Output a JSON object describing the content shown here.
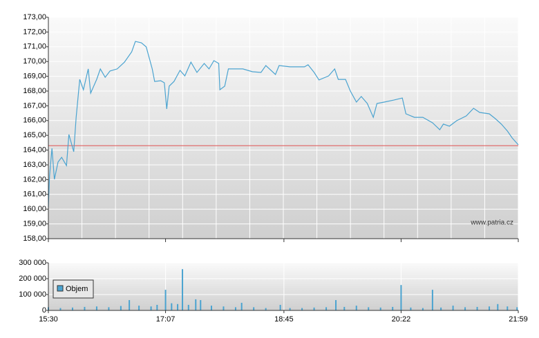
{
  "chart_data": {
    "type": "line",
    "watermark": "www.patria.cz",
    "xlim": [
      "15:30",
      "21:59"
    ],
    "xticks": [
      "15:30",
      "17:07",
      "18:45",
      "20:22",
      "21:59"
    ],
    "ylim": [
      158,
      173
    ],
    "yticks": [
      {
        "value": 158,
        "label": "158,00"
      },
      {
        "value": 159,
        "label": "159,00"
      },
      {
        "value": 160,
        "label": "160,00"
      },
      {
        "value": 161,
        "label": "161,00"
      },
      {
        "value": 162,
        "label": "162,00"
      },
      {
        "value": 163,
        "label": "163,00"
      },
      {
        "value": 164,
        "label": "164,00"
      },
      {
        "value": 165,
        "label": "165,00"
      },
      {
        "value": 166,
        "label": "166,00"
      },
      {
        "value": 167,
        "label": "167,00"
      },
      {
        "value": 168,
        "label": "168,00"
      },
      {
        "value": 169,
        "label": "169,00"
      },
      {
        "value": 170,
        "label": "170,00"
      },
      {
        "value": 171,
        "label": "171,00"
      },
      {
        "value": 172,
        "label": "172,00"
      },
      {
        "value": 173,
        "label": "173,00"
      }
    ],
    "y2lim": [
      0,
      300000
    ],
    "y2ticks": [
      0,
      {
        "value": 100000,
        "label": "100 000"
      },
      {
        "value": 200000,
        "label": "200 000"
      },
      {
        "value": 300000,
        "label": "300 000"
      }
    ],
    "reference_line": 164.3,
    "reference_color": "#e06060",
    "grid": true,
    "legend": "lower-left",
    "series": [
      {
        "type": "line",
        "color": "#4aa3d0",
        "x": [
          "15:30",
          "15:31",
          "15:33",
          "15:35",
          "15:38",
          "15:41",
          "15:45",
          "15:47",
          "15:51",
          "15:53",
          "15:56",
          "15:59",
          "16:03",
          "16:05",
          "16:10",
          "16:13",
          "16:17",
          "16:21",
          "16:27",
          "16:33",
          "16:39",
          "16:42",
          "16:47",
          "16:51",
          "16:56",
          "16:58",
          "17:03",
          "17:06",
          "17:08",
          "17:10",
          "17:14",
          "17:19",
          "17:23",
          "17:28",
          "17:33",
          "17:39",
          "17:43",
          "17:47",
          "17:51",
          "17:52",
          "17:56",
          "17:59",
          "18:04",
          "18:11",
          "18:19",
          "18:26",
          "18:30",
          "18:38",
          "18:41",
          "18:50",
          "19:02",
          "19:05",
          "19:10",
          "19:14",
          "19:22",
          "19:27",
          "19:30",
          "19:36",
          "19:40",
          "19:45",
          "19:49",
          "19:54",
          "19:59",
          "20:02",
          "20:08",
          "20:16",
          "20:23",
          "20:26",
          "20:33",
          "20:40",
          "20:48",
          "20:54",
          "20:57",
          "21:02",
          "21:08",
          "21:16",
          "21:22",
          "21:27",
          "21:35",
          "21:40",
          "21:45",
          "21:50",
          "21:54",
          "21:59"
        ],
        "values": [
          160.15,
          162.25,
          164.12,
          162.02,
          163.19,
          163.51,
          162.95,
          165.06,
          163.89,
          166.22,
          168.79,
          168.09,
          169.5,
          167.86,
          168.79,
          169.5,
          168.93,
          169.36,
          169.5,
          169.96,
          170.66,
          171.36,
          171.27,
          170.99,
          169.5,
          168.65,
          168.7,
          168.56,
          166.79,
          168.33,
          168.65,
          169.4,
          169.03,
          169.96,
          169.26,
          169.87,
          169.5,
          170.06,
          169.87,
          168.09,
          168.33,
          169.5,
          169.5,
          169.5,
          169.31,
          169.26,
          169.73,
          169.12,
          169.73,
          169.64,
          169.64,
          169.78,
          169.26,
          168.75,
          169.03,
          169.5,
          168.79,
          168.79,
          168.0,
          167.25,
          167.63,
          167.16,
          166.22,
          167.16,
          167.25,
          167.39,
          167.53,
          166.46,
          166.22,
          166.22,
          165.85,
          165.38,
          165.76,
          165.62,
          165.99,
          166.32,
          166.83,
          166.55,
          166.46,
          166.13,
          165.76,
          165.29,
          164.82,
          164.36
        ]
      },
      {
        "type": "bar",
        "name": "Objem",
        "color": "#4aa3d0",
        "axis": "y2",
        "x": [
          "15:30",
          "15:40",
          "15:50",
          "16:00",
          "16:10",
          "16:20",
          "16:30",
          "16:37",
          "16:45",
          "16:55",
          "17:00",
          "17:07",
          "17:12",
          "17:17",
          "17:21",
          "17:26",
          "17:32",
          "17:36",
          "17:45",
          "17:55",
          "18:05",
          "18:10",
          "18:20",
          "18:30",
          "18:42",
          "18:50",
          "19:00",
          "19:10",
          "19:20",
          "19:28",
          "19:35",
          "19:45",
          "19:55",
          "20:05",
          "20:15",
          "20:22",
          "20:30",
          "20:40",
          "20:48",
          "20:55",
          "21:05",
          "21:15",
          "21:25",
          "21:35",
          "21:42",
          "21:50",
          "21:58"
        ],
        "values": [
          20000,
          15000,
          18000,
          22000,
          25000,
          20000,
          28000,
          65000,
          30000,
          25000,
          35000,
          130000,
          45000,
          40000,
          260000,
          35000,
          70000,
          65000,
          30000,
          25000,
          20000,
          48000,
          20000,
          15000,
          35000,
          15000,
          15000,
          18000,
          20000,
          65000,
          22000,
          30000,
          20000,
          18000,
          22000,
          160000,
          18000,
          15000,
          130000,
          18000,
          30000,
          20000,
          22000,
          25000,
          40000,
          25000,
          20000
        ]
      }
    ]
  }
}
